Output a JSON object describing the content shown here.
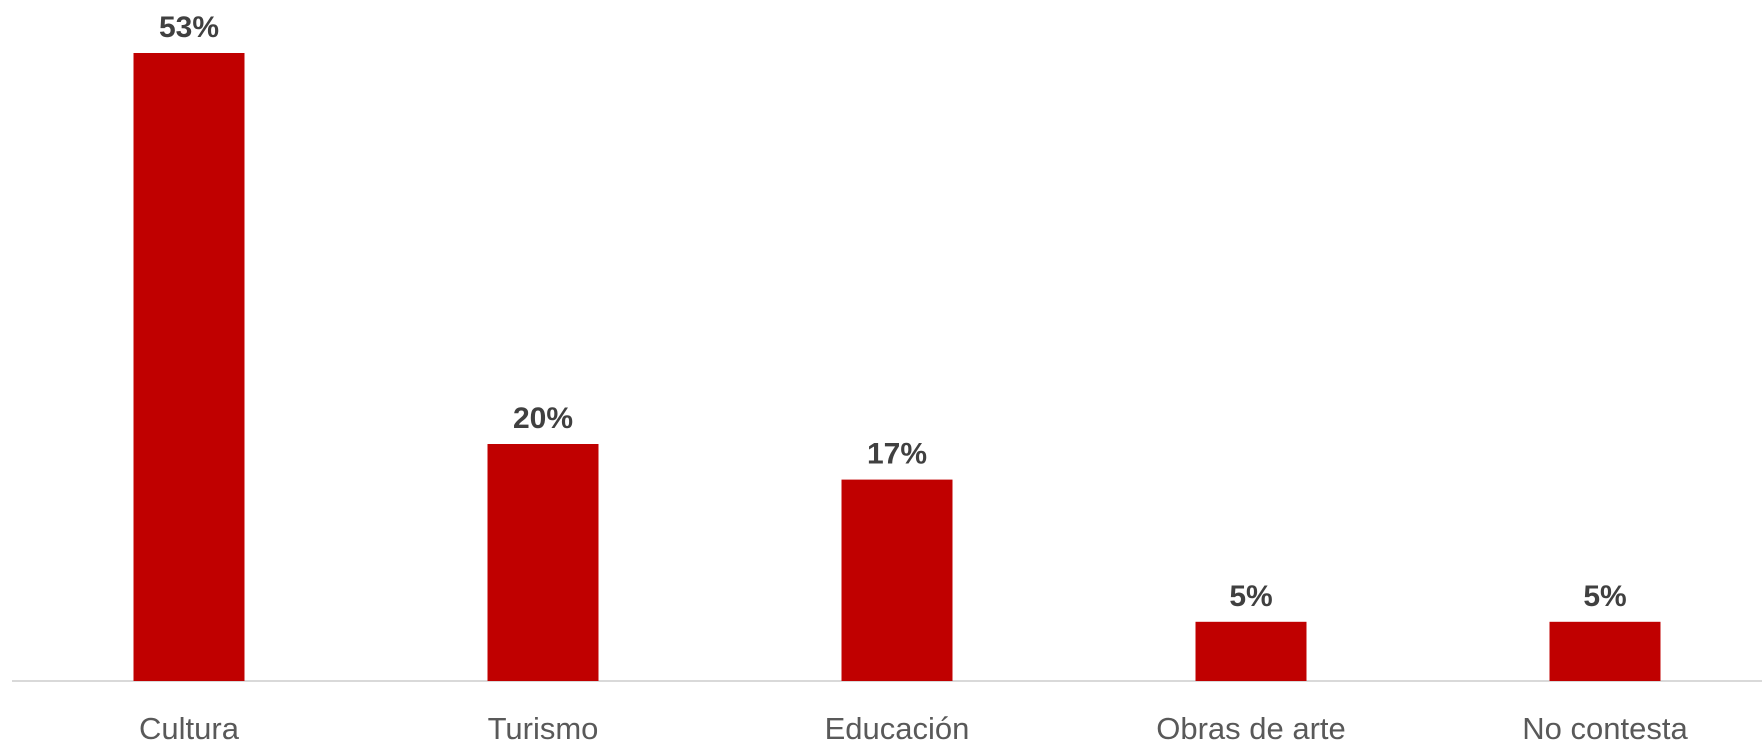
{
  "chart_data": {
    "type": "bar",
    "categories": [
      "Cultura",
      "Turismo",
      "Educación",
      "Obras de arte",
      "No contesta"
    ],
    "values": [
      53,
      20,
      17,
      5,
      5
    ],
    "data_labels": [
      "53%",
      "20%",
      "17%",
      "5%",
      "5%"
    ],
    "value_unit": "%",
    "ylim": [
      0,
      53
    ],
    "grid": false,
    "legend": "none",
    "title": "",
    "xlabel": "",
    "ylabel": "",
    "colors": {
      "bar": "#C00000",
      "axis": "#D9D9D9",
      "value_label": "#404040",
      "category_label": "#595959"
    }
  }
}
